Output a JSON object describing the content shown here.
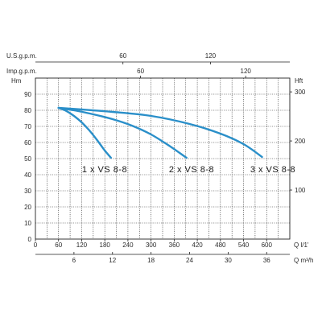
{
  "chart_data": {
    "type": "line",
    "title": "",
    "x_primary": {
      "label": "Q l/1'",
      "range": [
        0,
        660
      ],
      "ticks": [
        "0",
        "60",
        "120",
        "180",
        "240",
        "300",
        "360",
        "420",
        "480",
        "540",
        "600"
      ],
      "tick_values": [
        0,
        60,
        120,
        180,
        240,
        300,
        360,
        420,
        480,
        540,
        600
      ]
    },
    "x_secondary": [
      {
        "label": "Q m³/h",
        "position": "bottom",
        "ticks": [
          "6",
          "12",
          "18",
          "24",
          "30",
          "36"
        ],
        "tick_values": [
          6,
          12,
          18,
          24,
          30,
          36
        ]
      },
      {
        "label": "U.S.g.p.m.",
        "position": "top",
        "ticks": [
          "60",
          "120"
        ],
        "tick_values": [
          60,
          120
        ]
      },
      {
        "label": "Imp.g.p.m.",
        "position": "top",
        "ticks": [
          "60",
          "120"
        ],
        "tick_values": [
          60,
          120
        ]
      }
    ],
    "y_left": {
      "label": "Hm",
      "range": [
        0,
        100
      ],
      "ticks": [
        "0",
        "10",
        "20",
        "30",
        "40",
        "50",
        "60",
        "70",
        "80",
        "90"
      ],
      "tick_values": [
        0,
        10,
        20,
        30,
        40,
        50,
        60,
        70,
        80,
        90
      ]
    },
    "y_right": {
      "label": "Hft",
      "ticks": [
        "100",
        "200",
        "300"
      ],
      "tick_values": [
        100,
        200,
        300
      ]
    },
    "grid": true,
    "series": [
      {
        "name": "1 x VS 8-8",
        "x": [
          60,
          80,
          100,
          120,
          140,
          160,
          180,
          196
        ],
        "y": [
          81.5,
          79.6,
          76.5,
          72.5,
          67.5,
          61.5,
          55,
          50.5
        ]
      },
      {
        "name": "2 x VS 8-8",
        "x": [
          60,
          100,
          150,
          200,
          250,
          300,
          350,
          392
        ],
        "y": [
          81.5,
          80,
          77.5,
          74.5,
          70.5,
          65,
          57.5,
          50.5
        ]
      },
      {
        "name": "3 x VS 8-8",
        "x": [
          60,
          120,
          200,
          300,
          400,
          480,
          540,
          588
        ],
        "y": [
          81.5,
          80.5,
          79,
          76.5,
          71.5,
          65.5,
          59,
          51
        ]
      }
    ],
    "color": "#2a8fc9"
  }
}
